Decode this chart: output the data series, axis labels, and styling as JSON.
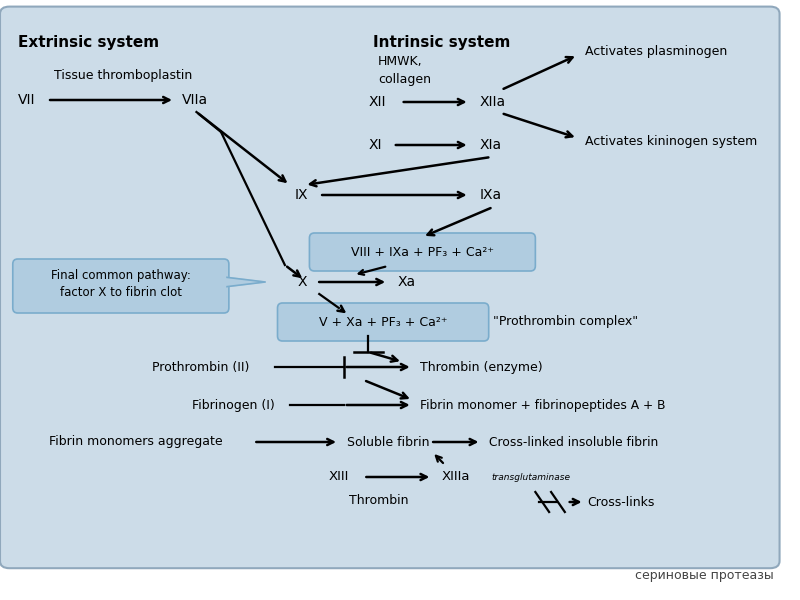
{
  "bg_color": "#ccdce8",
  "outer_bg": "#ffffff",
  "title_extrinsic": "Extrinsic system",
  "title_intrinsic": "Intrinsic system",
  "footer_text": "сериновые протеазы",
  "box_color": "#b0cce0",
  "box_edge_color": "#7aaccc"
}
